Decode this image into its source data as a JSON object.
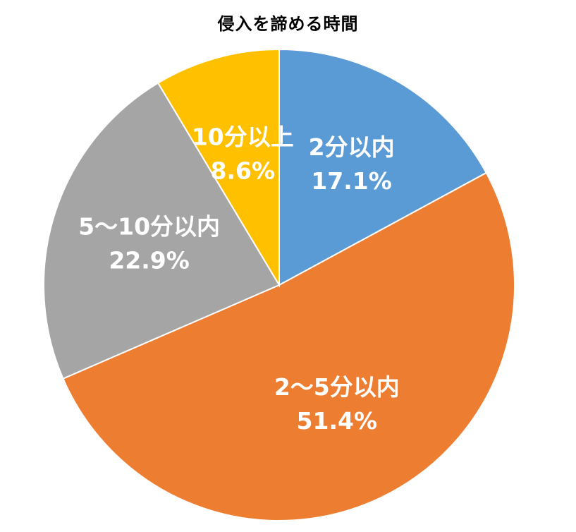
{
  "chart_data": {
    "type": "pie",
    "title": "侵入を諦める時間",
    "categories": [
      "2分以内",
      "2～5分以内",
      "5～10分以内",
      "10分以上"
    ],
    "values": [
      17.1,
      51.4,
      22.9,
      8.6
    ],
    "value_labels": [
      "17.1%",
      "51.4%",
      "22.9%",
      "8.6%"
    ],
    "colors": [
      "#5B9BD5",
      "#ED7D31",
      "#A5A5A5",
      "#FFC000"
    ],
    "start_angle": "12 o'clock",
    "direction": "clockwise",
    "legend": "none",
    "data_labels": "inside"
  }
}
